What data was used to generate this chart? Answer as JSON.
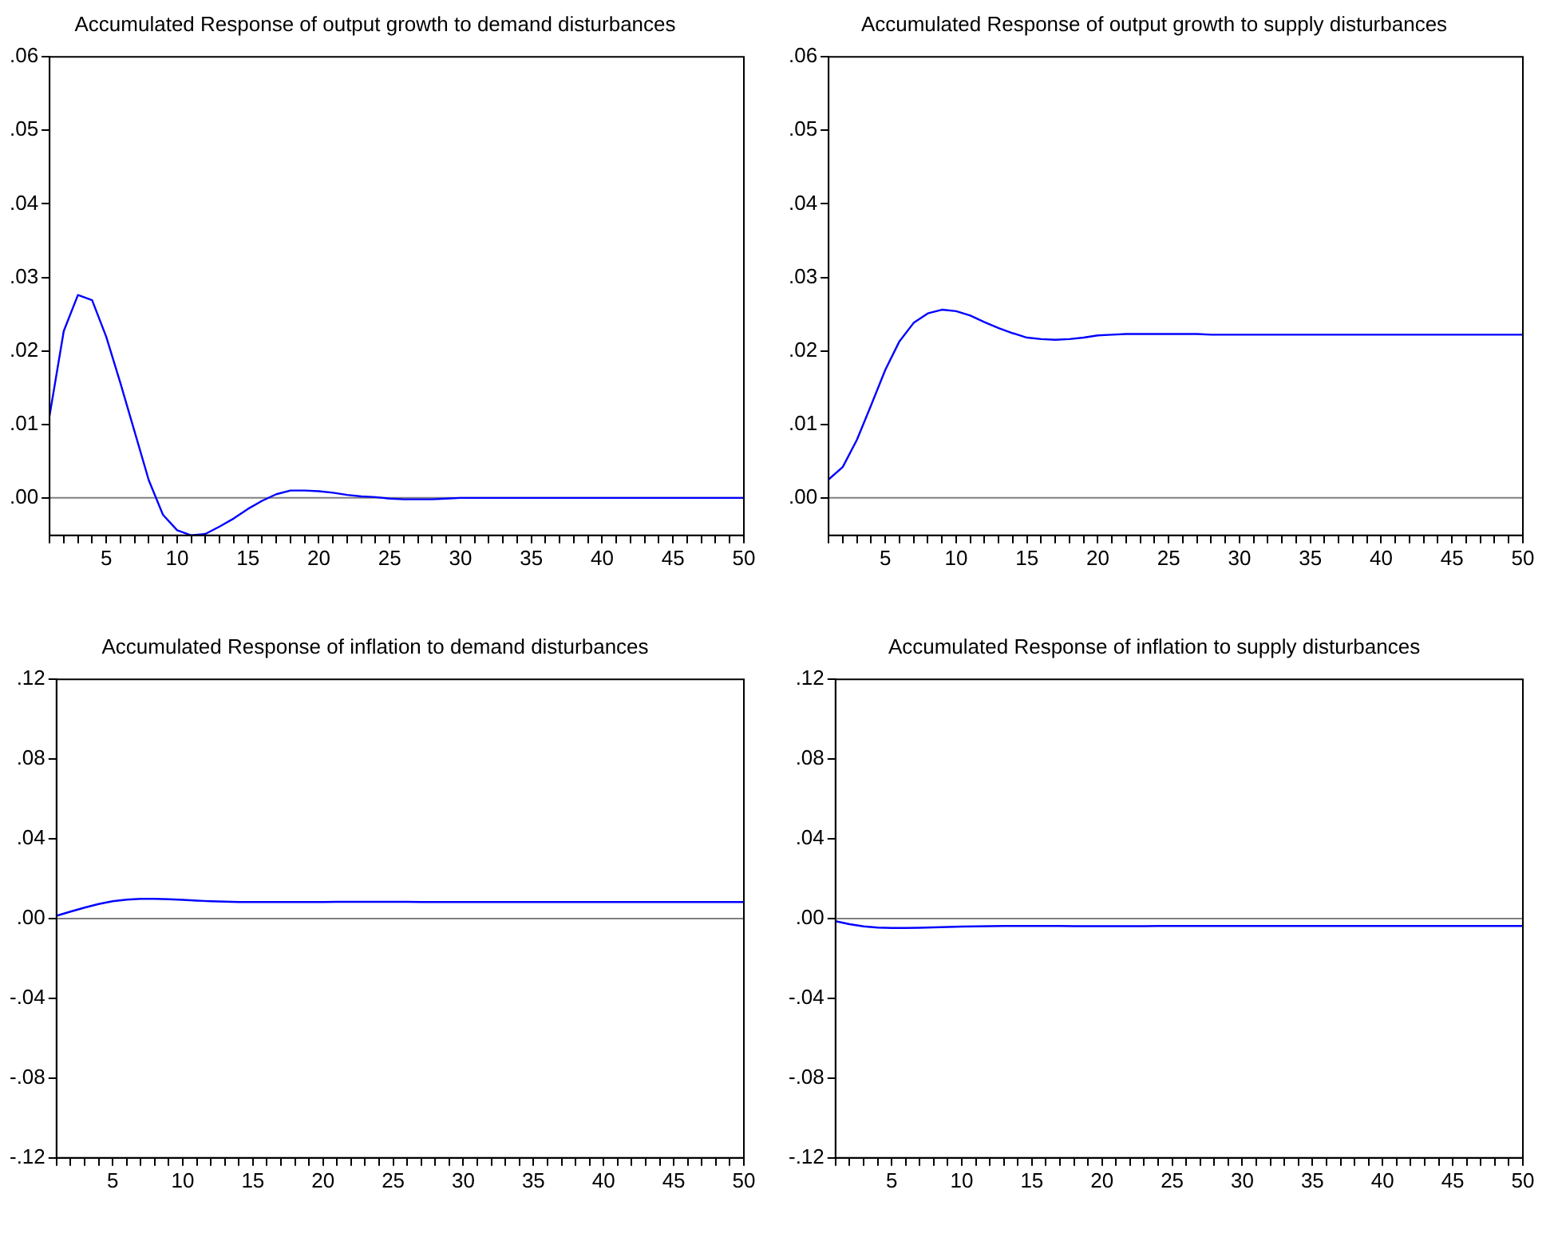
{
  "chart_data": [
    {
      "type": "line",
      "title": "Accumulated Response of output growth to demand disturbances",
      "x": [
        1,
        2,
        3,
        4,
        5,
        6,
        7,
        8,
        9,
        10,
        11,
        12,
        13,
        14,
        15,
        16,
        17,
        18,
        19,
        20,
        21,
        22,
        23,
        24,
        25,
        26,
        27,
        28,
        29,
        30,
        31,
        32,
        33,
        34,
        35,
        36,
        37,
        38,
        39,
        40,
        41,
        42,
        43,
        44,
        45,
        46,
        47,
        48,
        49,
        50
      ],
      "series": [
        {
          "color": "#0000ff",
          "values": [
            0.0112,
            0.0227,
            0.0276,
            0.0269,
            0.0219,
            0.0156,
            0.009,
            0.0024,
            -0.0023,
            -0.0044,
            -0.0051,
            -0.0049,
            -0.0039,
            -0.0028,
            -0.0015,
            -0.0004,
            0.0005,
            0.001,
            0.001,
            0.0009,
            0.0007,
            0.0004,
            0.0002,
            0.0001,
            -0.0001,
            -0.0002,
            -0.0002,
            -0.0002,
            -0.0001,
            0,
            0,
            0,
            0,
            0,
            0,
            0,
            0,
            0,
            0,
            0,
            0,
            0,
            0,
            0,
            0,
            0,
            0,
            0,
            0,
            0
          ]
        }
      ],
      "xlim": [
        1,
        50
      ],
      "xticks": [
        {
          "value": 1,
          "label": null
        },
        {
          "value": 2,
          "label": null
        },
        {
          "value": 3,
          "label": null
        },
        {
          "value": 4,
          "label": null
        },
        5,
        {
          "value": 6,
          "label": null
        },
        {
          "value": 7,
          "label": null
        },
        {
          "value": 8,
          "label": null
        },
        {
          "value": 9,
          "label": null
        },
        10,
        {
          "value": 11,
          "label": null
        },
        {
          "value": 12,
          "label": null
        },
        {
          "value": 13,
          "label": null
        },
        {
          "value": 14,
          "label": null
        },
        15,
        {
          "value": 16,
          "label": null
        },
        {
          "value": 17,
          "label": null
        },
        {
          "value": 18,
          "label": null
        },
        {
          "value": 19,
          "label": null
        },
        20,
        {
          "value": 21,
          "label": null
        },
        {
          "value": 22,
          "label": null
        },
        {
          "value": 23,
          "label": null
        },
        {
          "value": 24,
          "label": null
        },
        25,
        {
          "value": 26,
          "label": null
        },
        {
          "value": 27,
          "label": null
        },
        {
          "value": 28,
          "label": null
        },
        {
          "value": 29,
          "label": null
        },
        30,
        {
          "value": 31,
          "label": null
        },
        {
          "value": 32,
          "label": null
        },
        {
          "value": 33,
          "label": null
        },
        {
          "value": 34,
          "label": null
        },
        35,
        {
          "value": 36,
          "label": null
        },
        {
          "value": 37,
          "label": null
        },
        {
          "value": 38,
          "label": null
        },
        {
          "value": 39,
          "label": null
        },
        40,
        {
          "value": 41,
          "label": null
        },
        {
          "value": 42,
          "label": null
        },
        {
          "value": 43,
          "label": null
        },
        {
          "value": 44,
          "label": null
        },
        45,
        {
          "value": 46,
          "label": null
        },
        {
          "value": 47,
          "label": null
        },
        {
          "value": 48,
          "label": null
        },
        {
          "value": 49,
          "label": null
        },
        50
      ],
      "ylim": [
        -0.0051,
        0.06
      ],
      "yticks": [
        {
          "value": 0,
          "label": ".00"
        },
        {
          "value": 0.01,
          "label": ".01"
        },
        {
          "value": 0.02,
          "label": ".02"
        },
        {
          "value": 0.03,
          "label": ".03"
        },
        {
          "value": 0.04,
          "label": ".04"
        },
        {
          "value": 0.05,
          "label": ".05"
        },
        {
          "value": 0.06,
          "label": ".06"
        }
      ],
      "ref_lines": [
        {
          "axis": "y",
          "value": 0,
          "color": "#808080"
        }
      ],
      "grid": false,
      "legend": false,
      "marker": "none",
      "line_style": "solid"
    },
    {
      "type": "line",
      "title": "Accumulated Response of output growth to supply disturbances",
      "x": [
        1,
        2,
        3,
        4,
        5,
        6,
        7,
        8,
        9,
        10,
        11,
        12,
        13,
        14,
        15,
        16,
        17,
        18,
        19,
        20,
        21,
        22,
        23,
        24,
        25,
        26,
        27,
        28,
        29,
        30,
        31,
        32,
        33,
        34,
        35,
        36,
        37,
        38,
        39,
        40,
        41,
        42,
        43,
        44,
        45,
        46,
        47,
        48,
        49,
        50
      ],
      "series": [
        {
          "color": "#0000ff",
          "values": [
            0.0025,
            0.0042,
            0.0079,
            0.0126,
            0.0174,
            0.0213,
            0.0238,
            0.0251,
            0.0256,
            0.0254,
            0.0248,
            0.0239,
            0.0231,
            0.0224,
            0.0218,
            0.0216,
            0.0215,
            0.0216,
            0.0218,
            0.0221,
            0.0222,
            0.0223,
            0.0223,
            0.0223,
            0.0223,
            0.0223,
            0.0223,
            0.0222,
            0.0222,
            0.0222,
            0.0222,
            0.0222,
            0.0222,
            0.0222,
            0.0222,
            0.0222,
            0.0222,
            0.0222,
            0.0222,
            0.0222,
            0.0222,
            0.0222,
            0.0222,
            0.0222,
            0.0222,
            0.0222,
            0.0222,
            0.0222,
            0.0222,
            0.0222
          ]
        }
      ],
      "xlim": [
        1,
        50
      ],
      "xticks": [
        {
          "value": 1,
          "label": null
        },
        {
          "value": 2,
          "label": null
        },
        {
          "value": 3,
          "label": null
        },
        {
          "value": 4,
          "label": null
        },
        5,
        {
          "value": 6,
          "label": null
        },
        {
          "value": 7,
          "label": null
        },
        {
          "value": 8,
          "label": null
        },
        {
          "value": 9,
          "label": null
        },
        10,
        {
          "value": 11,
          "label": null
        },
        {
          "value": 12,
          "label": null
        },
        {
          "value": 13,
          "label": null
        },
        {
          "value": 14,
          "label": null
        },
        15,
        {
          "value": 16,
          "label": null
        },
        {
          "value": 17,
          "label": null
        },
        {
          "value": 18,
          "label": null
        },
        {
          "value": 19,
          "label": null
        },
        20,
        {
          "value": 21,
          "label": null
        },
        {
          "value": 22,
          "label": null
        },
        {
          "value": 23,
          "label": null
        },
        {
          "value": 24,
          "label": null
        },
        25,
        {
          "value": 26,
          "label": null
        },
        {
          "value": 27,
          "label": null
        },
        {
          "value": 28,
          "label": null
        },
        {
          "value": 29,
          "label": null
        },
        30,
        {
          "value": 31,
          "label": null
        },
        {
          "value": 32,
          "label": null
        },
        {
          "value": 33,
          "label": null
        },
        {
          "value": 34,
          "label": null
        },
        35,
        {
          "value": 36,
          "label": null
        },
        {
          "value": 37,
          "label": null
        },
        {
          "value": 38,
          "label": null
        },
        {
          "value": 39,
          "label": null
        },
        40,
        {
          "value": 41,
          "label": null
        },
        {
          "value": 42,
          "label": null
        },
        {
          "value": 43,
          "label": null
        },
        {
          "value": 44,
          "label": null
        },
        45,
        {
          "value": 46,
          "label": null
        },
        {
          "value": 47,
          "label": null
        },
        {
          "value": 48,
          "label": null
        },
        {
          "value": 49,
          "label": null
        },
        50
      ],
      "ylim": [
        -0.0051,
        0.06
      ],
      "yticks": [
        {
          "value": 0,
          "label": ".00"
        },
        {
          "value": 0.01,
          "label": ".01"
        },
        {
          "value": 0.02,
          "label": ".02"
        },
        {
          "value": 0.03,
          "label": ".03"
        },
        {
          "value": 0.04,
          "label": ".04"
        },
        {
          "value": 0.05,
          "label": ".05"
        },
        {
          "value": 0.06,
          "label": ".06"
        }
      ],
      "ref_lines": [
        {
          "axis": "y",
          "value": 0,
          "color": "#808080"
        }
      ],
      "grid": false,
      "legend": false,
      "marker": "none",
      "line_style": "solid"
    },
    {
      "type": "line",
      "title": "Accumulated Response of inflation to demand disturbances",
      "x": [
        1,
        2,
        3,
        4,
        5,
        6,
        7,
        8,
        9,
        10,
        11,
        12,
        13,
        14,
        15,
        16,
        17,
        18,
        19,
        20,
        21,
        22,
        23,
        24,
        25,
        26,
        27,
        28,
        29,
        30,
        31,
        32,
        33,
        34,
        35,
        36,
        37,
        38,
        39,
        40,
        41,
        42,
        43,
        44,
        45,
        46,
        47,
        48,
        49,
        50
      ],
      "series": [
        {
          "color": "#0000ff",
          "values": [
            0.0014,
            0.0035,
            0.0055,
            0.0073,
            0.0087,
            0.0095,
            0.0099,
            0.0099,
            0.0097,
            0.0094,
            0.009,
            0.0087,
            0.0085,
            0.0083,
            0.0083,
            0.0083,
            0.0083,
            0.0083,
            0.0083,
            0.0083,
            0.0084,
            0.0084,
            0.0084,
            0.0084,
            0.0084,
            0.0084,
            0.0083,
            0.0083,
            0.0083,
            0.0083,
            0.0083,
            0.0083,
            0.0083,
            0.0083,
            0.0083,
            0.0083,
            0.0083,
            0.0083,
            0.0083,
            0.0083,
            0.0083,
            0.0083,
            0.0083,
            0.0083,
            0.0083,
            0.0083,
            0.0083,
            0.0083,
            0.0083,
            0.0083
          ]
        }
      ],
      "xlim": [
        1,
        50
      ],
      "xticks": [
        {
          "value": 1,
          "label": null
        },
        {
          "value": 2,
          "label": null
        },
        {
          "value": 3,
          "label": null
        },
        {
          "value": 4,
          "label": null
        },
        5,
        {
          "value": 6,
          "label": null
        },
        {
          "value": 7,
          "label": null
        },
        {
          "value": 8,
          "label": null
        },
        {
          "value": 9,
          "label": null
        },
        10,
        {
          "value": 11,
          "label": null
        },
        {
          "value": 12,
          "label": null
        },
        {
          "value": 13,
          "label": null
        },
        {
          "value": 14,
          "label": null
        },
        15,
        {
          "value": 16,
          "label": null
        },
        {
          "value": 17,
          "label": null
        },
        {
          "value": 18,
          "label": null
        },
        {
          "value": 19,
          "label": null
        },
        20,
        {
          "value": 21,
          "label": null
        },
        {
          "value": 22,
          "label": null
        },
        {
          "value": 23,
          "label": null
        },
        {
          "value": 24,
          "label": null
        },
        25,
        {
          "value": 26,
          "label": null
        },
        {
          "value": 27,
          "label": null
        },
        {
          "value": 28,
          "label": null
        },
        {
          "value": 29,
          "label": null
        },
        30,
        {
          "value": 31,
          "label": null
        },
        {
          "value": 32,
          "label": null
        },
        {
          "value": 33,
          "label": null
        },
        {
          "value": 34,
          "label": null
        },
        35,
        {
          "value": 36,
          "label": null
        },
        {
          "value": 37,
          "label": null
        },
        {
          "value": 38,
          "label": null
        },
        {
          "value": 39,
          "label": null
        },
        40,
        {
          "value": 41,
          "label": null
        },
        {
          "value": 42,
          "label": null
        },
        {
          "value": 43,
          "label": null
        },
        {
          "value": 44,
          "label": null
        },
        45,
        {
          "value": 46,
          "label": null
        },
        {
          "value": 47,
          "label": null
        },
        {
          "value": 48,
          "label": null
        },
        {
          "value": 49,
          "label": null
        },
        50
      ],
      "ylim": [
        -0.12,
        0.12
      ],
      "yticks": [
        {
          "value": -0.12,
          "label": "-.12"
        },
        {
          "value": -0.08,
          "label": "-.08"
        },
        {
          "value": -0.04,
          "label": "-.04"
        },
        {
          "value": 0,
          "label": ".00"
        },
        {
          "value": 0.04,
          "label": ".04"
        },
        {
          "value": 0.08,
          "label": ".08"
        },
        {
          "value": 0.12,
          "label": ".12"
        }
      ],
      "ref_lines": [
        {
          "axis": "y",
          "value": 0,
          "color": "#808080"
        }
      ],
      "grid": false,
      "legend": false,
      "marker": "none",
      "line_style": "solid"
    },
    {
      "type": "line",
      "title": "Accumulated Response of inflation to supply disturbances",
      "x": [
        1,
        2,
        3,
        4,
        5,
        6,
        7,
        8,
        9,
        10,
        11,
        12,
        13,
        14,
        15,
        16,
        17,
        18,
        19,
        20,
        21,
        22,
        23,
        24,
        25,
        26,
        27,
        28,
        29,
        30,
        31,
        32,
        33,
        34,
        35,
        36,
        37,
        38,
        39,
        40,
        41,
        42,
        43,
        44,
        45,
        46,
        47,
        48,
        49,
        50
      ],
      "series": [
        {
          "color": "#0000ff",
          "values": [
            -0.0013,
            -0.0028,
            -0.0039,
            -0.0045,
            -0.0047,
            -0.0047,
            -0.0046,
            -0.0044,
            -0.0042,
            -0.004,
            -0.0039,
            -0.0038,
            -0.0037,
            -0.0037,
            -0.0037,
            -0.0037,
            -0.0037,
            -0.0038,
            -0.0038,
            -0.0038,
            -0.0038,
            -0.0038,
            -0.0038,
            -0.0037,
            -0.0037,
            -0.0037,
            -0.0037,
            -0.0037,
            -0.0037,
            -0.0037,
            -0.0037,
            -0.0037,
            -0.0037,
            -0.0037,
            -0.0037,
            -0.0037,
            -0.0037,
            -0.0037,
            -0.0037,
            -0.0037,
            -0.0037,
            -0.0037,
            -0.0037,
            -0.0037,
            -0.0037,
            -0.0037,
            -0.0037,
            -0.0037,
            -0.0037,
            -0.0037
          ]
        }
      ],
      "xlim": [
        1,
        50
      ],
      "xticks": [
        {
          "value": 1,
          "label": null
        },
        {
          "value": 2,
          "label": null
        },
        {
          "value": 3,
          "label": null
        },
        {
          "value": 4,
          "label": null
        },
        5,
        {
          "value": 6,
          "label": null
        },
        {
          "value": 7,
          "label": null
        },
        {
          "value": 8,
          "label": null
        },
        {
          "value": 9,
          "label": null
        },
        10,
        {
          "value": 11,
          "label": null
        },
        {
          "value": 12,
          "label": null
        },
        {
          "value": 13,
          "label": null
        },
        {
          "value": 14,
          "label": null
        },
        15,
        {
          "value": 16,
          "label": null
        },
        {
          "value": 17,
          "label": null
        },
        {
          "value": 18,
          "label": null
        },
        {
          "value": 19,
          "label": null
        },
        20,
        {
          "value": 21,
          "label": null
        },
        {
          "value": 22,
          "label": null
        },
        {
          "value": 23,
          "label": null
        },
        {
          "value": 24,
          "label": null
        },
        25,
        {
          "value": 26,
          "label": null
        },
        {
          "value": 27,
          "label": null
        },
        {
          "value": 28,
          "label": null
        },
        {
          "value": 29,
          "label": null
        },
        30,
        {
          "value": 31,
          "label": null
        },
        {
          "value": 32,
          "label": null
        },
        {
          "value": 33,
          "label": null
        },
        {
          "value": 34,
          "label": null
        },
        35,
        {
          "value": 36,
          "label": null
        },
        {
          "value": 37,
          "label": null
        },
        {
          "value": 38,
          "label": null
        },
        {
          "value": 39,
          "label": null
        },
        40,
        {
          "value": 41,
          "label": null
        },
        {
          "value": 42,
          "label": null
        },
        {
          "value": 43,
          "label": null
        },
        {
          "value": 44,
          "label": null
        },
        45,
        {
          "value": 46,
          "label": null
        },
        {
          "value": 47,
          "label": null
        },
        {
          "value": 48,
          "label": null
        },
        {
          "value": 49,
          "label": null
        },
        50
      ],
      "ylim": [
        -0.12,
        0.12
      ],
      "yticks": [
        {
          "value": -0.12,
          "label": "-.12"
        },
        {
          "value": -0.08,
          "label": "-.08"
        },
        {
          "value": -0.04,
          "label": "-.04"
        },
        {
          "value": 0,
          "label": ".00"
        },
        {
          "value": 0.04,
          "label": ".04"
        },
        {
          "value": 0.08,
          "label": ".08"
        },
        {
          "value": 0.12,
          "label": ".12"
        }
      ],
      "ref_lines": [
        {
          "axis": "y",
          "value": 0,
          "color": "#808080"
        }
      ],
      "grid": false,
      "legend": false,
      "marker": "none",
      "line_style": "solid"
    }
  ]
}
